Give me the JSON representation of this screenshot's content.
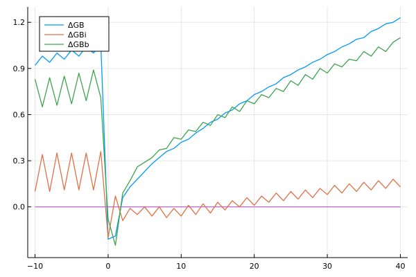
{
  "chart_data": {
    "type": "line",
    "grid": true,
    "legend_position": "top-left",
    "xlim": [
      -11,
      41
    ],
    "ylim": [
      -0.33,
      1.3
    ],
    "x_ticks": [
      -10,
      0,
      10,
      20,
      30,
      40
    ],
    "x_tick_labels": [
      "−10",
      "0",
      "10",
      "20",
      "30",
      "40"
    ],
    "y_ticks": [
      0.0,
      0.3,
      0.6,
      0.9,
      1.2
    ],
    "y_tick_labels": [
      "0.0",
      "0.3",
      "0.6",
      "0.9",
      "1.2"
    ],
    "x": [
      -10,
      -9,
      -8,
      -7,
      -6,
      -5,
      -4,
      -3,
      -2,
      -1,
      0,
      1,
      2,
      3,
      4,
      5,
      6,
      7,
      8,
      9,
      10,
      11,
      12,
      13,
      14,
      15,
      16,
      17,
      18,
      19,
      20,
      21,
      22,
      23,
      24,
      25,
      26,
      27,
      28,
      29,
      30,
      31,
      32,
      33,
      34,
      35,
      36,
      37,
      38,
      39,
      40
    ],
    "series": [
      {
        "name": "ΔGB",
        "color": "#009AF9",
        "values": [
          0.92,
          0.98,
          0.94,
          1.0,
          0.96,
          1.02,
          0.98,
          1.04,
          1.0,
          1.06,
          -0.21,
          -0.19,
          0.06,
          0.13,
          0.18,
          0.23,
          0.28,
          0.32,
          0.36,
          0.38,
          0.42,
          0.44,
          0.48,
          0.51,
          0.55,
          0.57,
          0.61,
          0.63,
          0.67,
          0.69,
          0.73,
          0.75,
          0.78,
          0.8,
          0.84,
          0.86,
          0.89,
          0.91,
          0.94,
          0.96,
          0.99,
          1.01,
          1.04,
          1.06,
          1.09,
          1.1,
          1.14,
          1.16,
          1.19,
          1.2,
          1.23
        ]
      },
      {
        "name": "ΔGBi",
        "color": "#E26F46",
        "values": [
          0.1,
          0.34,
          0.1,
          0.35,
          0.11,
          0.35,
          0.11,
          0.35,
          0.11,
          0.36,
          -0.2,
          0.07,
          -0.09,
          -0.01,
          -0.05,
          0.0,
          -0.06,
          0.0,
          -0.07,
          -0.01,
          -0.06,
          0.01,
          -0.05,
          0.02,
          -0.04,
          0.03,
          -0.02,
          0.04,
          0.0,
          0.06,
          0.01,
          0.07,
          0.03,
          0.09,
          0.04,
          0.1,
          0.05,
          0.11,
          0.06,
          0.12,
          0.08,
          0.14,
          0.09,
          0.15,
          0.1,
          0.16,
          0.11,
          0.17,
          0.12,
          0.18,
          0.13
        ]
      },
      {
        "name": "ΔGBb",
        "color": "#3DA44E",
        "values": [
          0.83,
          0.65,
          0.84,
          0.66,
          0.85,
          0.67,
          0.87,
          0.69,
          0.89,
          0.71,
          -0.08,
          -0.25,
          0.09,
          0.17,
          0.26,
          0.29,
          0.32,
          0.37,
          0.38,
          0.45,
          0.44,
          0.5,
          0.49,
          0.55,
          0.53,
          0.6,
          0.58,
          0.65,
          0.62,
          0.69,
          0.67,
          0.73,
          0.71,
          0.77,
          0.75,
          0.82,
          0.79,
          0.86,
          0.83,
          0.9,
          0.87,
          0.93,
          0.91,
          0.96,
          0.95,
          1.01,
          0.98,
          1.04,
          1.01,
          1.07,
          1.1
        ]
      },
      {
        "name": "",
        "color": "#C271D2",
        "values": [
          0,
          0,
          0,
          0,
          0,
          0,
          0,
          0,
          0,
          0,
          0,
          0,
          0,
          0,
          0,
          0,
          0,
          0,
          0,
          0,
          0,
          0,
          0,
          0,
          0,
          0,
          0,
          0,
          0,
          0,
          0,
          0,
          0,
          0,
          0,
          0,
          0,
          0,
          0,
          0,
          0,
          0,
          0,
          0,
          0,
          0,
          0,
          0,
          0,
          0,
          0
        ]
      }
    ],
    "legend_items": [
      "ΔGB",
      "ΔGBi",
      "ΔGBb"
    ]
  }
}
